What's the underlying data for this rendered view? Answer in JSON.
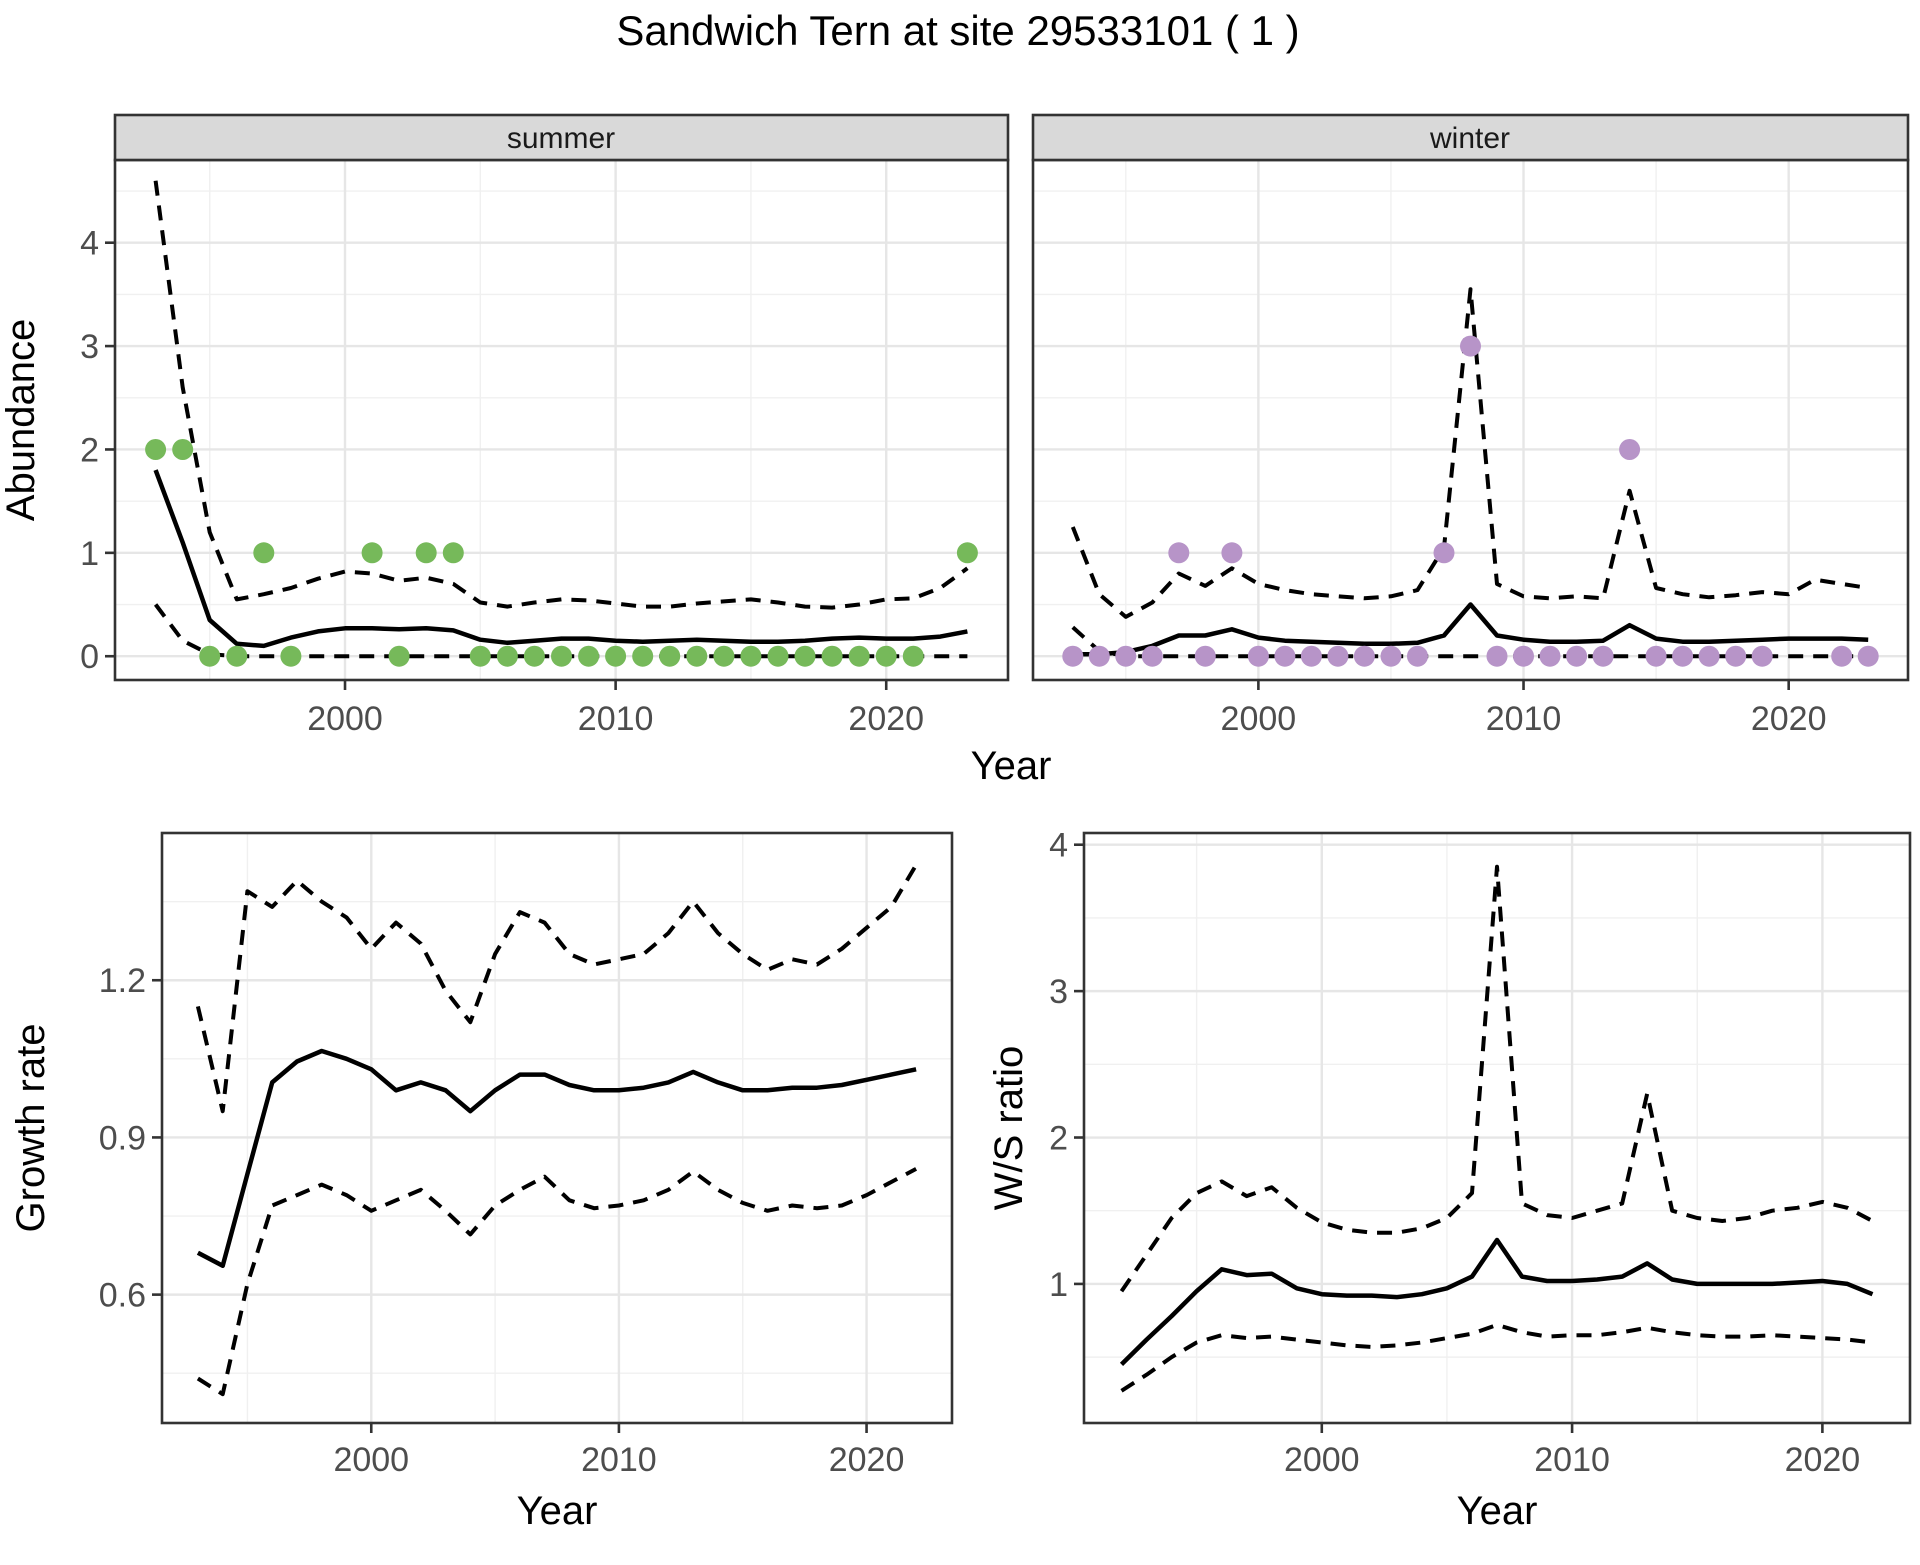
{
  "title": "Sandwich Tern at site 29533101 ( 1 )",
  "colors": {
    "summer_point": "#76B95A",
    "winter_point": "#B794C8",
    "line": "#000000",
    "grid_major": "#E6E6E6",
    "grid_minor": "#F0F0F0",
    "panel_border": "#333333",
    "panel_bg": "#FFFFFF",
    "strip_fill": "#D9D9D9",
    "tick_label": "#4D4D4D",
    "axis_title": "#000000"
  },
  "chart_data": [
    {
      "id": "abundance-summer",
      "type": "line",
      "facet": "summer",
      "xlabel": "Year",
      "ylabel": "Abundance",
      "xlim": [
        1991.5,
        2024.5
      ],
      "ylim": [
        -0.23,
        4.8
      ],
      "xticks": [
        2000,
        2010,
        2020
      ],
      "xtick_labels": [
        "2000",
        "2010",
        "2020"
      ],
      "yticks": [
        0,
        1,
        2,
        3,
        4
      ],
      "ytick_labels": [
        "0",
        "1",
        "2",
        "3",
        "4"
      ],
      "x_minor": [
        1995,
        2005,
        2015
      ],
      "y_minor": [
        0.5,
        1.5,
        2.5,
        3.5,
        4.5
      ],
      "grid": true,
      "legend": "none",
      "x": [
        1993,
        1994,
        1995,
        1996,
        1997,
        1998,
        1999,
        2000,
        2001,
        2002,
        2003,
        2004,
        2005,
        2006,
        2007,
        2008,
        2009,
        2010,
        2011,
        2012,
        2013,
        2014,
        2015,
        2016,
        2017,
        2018,
        2019,
        2020,
        2021,
        2022,
        2023
      ],
      "series": [
        {
          "name": "upper_ci",
          "style": "dashed",
          "values": [
            4.6,
            2.6,
            1.2,
            0.55,
            0.6,
            0.66,
            0.75,
            0.82,
            0.8,
            0.73,
            0.76,
            0.7,
            0.52,
            0.48,
            0.52,
            0.55,
            0.54,
            0.51,
            0.48,
            0.48,
            0.51,
            0.53,
            0.55,
            0.52,
            0.48,
            0.47,
            0.5,
            0.55,
            0.56,
            0.66,
            0.85
          ]
        },
        {
          "name": "estimate",
          "style": "solid",
          "values": [
            1.8,
            1.1,
            0.35,
            0.12,
            0.1,
            0.18,
            0.24,
            0.27,
            0.27,
            0.26,
            0.27,
            0.25,
            0.16,
            0.13,
            0.15,
            0.17,
            0.17,
            0.15,
            0.14,
            0.15,
            0.16,
            0.15,
            0.14,
            0.14,
            0.15,
            0.17,
            0.18,
            0.17,
            0.17,
            0.19,
            0.24
          ]
        },
        {
          "name": "lower_ci",
          "style": "dashed",
          "values": [
            0.5,
            0.15,
            0.02,
            0,
            0,
            0,
            0,
            0,
            0,
            0,
            0,
            0,
            0,
            0,
            0,
            0,
            0,
            0,
            0,
            0,
            0,
            0,
            0,
            0,
            0,
            0,
            0,
            0,
            0,
            0,
            0
          ]
        },
        {
          "name": "observed_counts",
          "style": "points",
          "color_key": "summer_point",
          "values": [
            2,
            2,
            0,
            0,
            1,
            0,
            null,
            null,
            1,
            0,
            1,
            1,
            0,
            0,
            0,
            0,
            0,
            0,
            0,
            0,
            0,
            0,
            0,
            0,
            0,
            0,
            0,
            0,
            0,
            null,
            1
          ]
        }
      ]
    },
    {
      "id": "abundance-winter",
      "type": "line",
      "facet": "winter",
      "xlabel": "Year",
      "ylabel": "Abundance",
      "xlim": [
        1991.5,
        2024.5
      ],
      "ylim": [
        -0.23,
        4.8
      ],
      "xticks": [
        2000,
        2010,
        2020
      ],
      "xtick_labels": [
        "2000",
        "2010",
        "2020"
      ],
      "yticks": [
        0,
        1,
        2,
        3,
        4
      ],
      "ytick_labels": [
        "0",
        "1",
        "2",
        "3",
        "4"
      ],
      "x_minor": [
        1995,
        2005,
        2015
      ],
      "y_minor": [
        0.5,
        1.5,
        2.5,
        3.5,
        4.5
      ],
      "grid": true,
      "legend": "none",
      "x": [
        1993,
        1994,
        1995,
        1996,
        1997,
        1998,
        1999,
        2000,
        2001,
        2002,
        2003,
        2004,
        2005,
        2006,
        2007,
        2008,
        2009,
        2010,
        2011,
        2012,
        2013,
        2014,
        2015,
        2016,
        2017,
        2018,
        2019,
        2020,
        2021,
        2022,
        2023
      ],
      "series": [
        {
          "name": "upper_ci",
          "style": "dashed",
          "values": [
            1.25,
            0.6,
            0.38,
            0.52,
            0.8,
            0.68,
            0.85,
            0.7,
            0.64,
            0.6,
            0.58,
            0.56,
            0.58,
            0.64,
            1.05,
            3.55,
            0.7,
            0.58,
            0.56,
            0.58,
            0.56,
            1.6,
            0.66,
            0.6,
            0.57,
            0.59,
            0.62,
            0.6,
            0.74,
            0.7,
            0.66
          ]
        },
        {
          "name": "estimate",
          "style": "solid",
          "values": [
            0.02,
            0.02,
            0.04,
            0.1,
            0.2,
            0.2,
            0.26,
            0.18,
            0.15,
            0.14,
            0.13,
            0.12,
            0.12,
            0.13,
            0.2,
            0.5,
            0.2,
            0.16,
            0.14,
            0.14,
            0.15,
            0.3,
            0.17,
            0.14,
            0.14,
            0.15,
            0.16,
            0.17,
            0.17,
            0.17,
            0.16
          ]
        },
        {
          "name": "lower_ci",
          "style": "dashed",
          "values": [
            0.28,
            0.05,
            0,
            0,
            0,
            0,
            0,
            0,
            0,
            0,
            0,
            0,
            0,
            0,
            0,
            0,
            0,
            0,
            0,
            0,
            0,
            0,
            0,
            0,
            0,
            0,
            0,
            0,
            0,
            0,
            0
          ]
        },
        {
          "name": "observed_counts",
          "style": "points",
          "color_key": "winter_point",
          "values": [
            0,
            0,
            0,
            0,
            1,
            0,
            1,
            0,
            0,
            0,
            0,
            0,
            0,
            0,
            1,
            3,
            0,
            0,
            0,
            0,
            0,
            2,
            0,
            0,
            0,
            0,
            0,
            null,
            null,
            0,
            0
          ]
        }
      ]
    },
    {
      "id": "growth-rate",
      "type": "line",
      "facet": null,
      "xlabel": "Year",
      "ylabel": "Growth rate",
      "xlim": [
        1991.55,
        2023.45
      ],
      "ylim": [
        0.355,
        1.481
      ],
      "xticks": [
        2000,
        2010,
        2020
      ],
      "xtick_labels": [
        "2000",
        "2010",
        "2020"
      ],
      "yticks": [
        0.6,
        0.9,
        1.2
      ],
      "ytick_labels": [
        "0.6",
        "0.9",
        "1.2"
      ],
      "x_minor": [
        1995,
        2005,
        2015
      ],
      "y_minor": [
        0.45,
        0.75,
        1.05,
        1.35
      ],
      "grid": true,
      "legend": "none",
      "x": [
        1993,
        1994,
        1995,
        1996,
        1997,
        1998,
        1999,
        2000,
        2001,
        2002,
        2003,
        2004,
        2005,
        2006,
        2007,
        2008,
        2009,
        2010,
        2011,
        2012,
        2013,
        2014,
        2015,
        2016,
        2017,
        2018,
        2019,
        2020,
        2021,
        2022
      ],
      "series": [
        {
          "name": "upper_ci",
          "style": "dashed",
          "values": [
            1.15,
            0.95,
            1.37,
            1.34,
            1.39,
            1.35,
            1.32,
            1.26,
            1.31,
            1.27,
            1.18,
            1.12,
            1.25,
            1.33,
            1.31,
            1.25,
            1.23,
            1.24,
            1.25,
            1.29,
            1.35,
            1.29,
            1.25,
            1.22,
            1.24,
            1.23,
            1.26,
            1.3,
            1.34,
            1.42
          ]
        },
        {
          "name": "estimate",
          "style": "solid",
          "values": [
            0.68,
            0.655,
            0.83,
            1.005,
            1.045,
            1.065,
            1.05,
            1.03,
            0.99,
            1.005,
            0.99,
            0.95,
            0.99,
            1.02,
            1.02,
            1.0,
            0.99,
            0.99,
            0.995,
            1.005,
            1.025,
            1.005,
            0.99,
            0.99,
            0.995,
            0.995,
            1.0,
            1.01,
            1.02,
            1.03
          ]
        },
        {
          "name": "lower_ci",
          "style": "dashed",
          "values": [
            0.44,
            0.41,
            0.62,
            0.77,
            0.79,
            0.81,
            0.79,
            0.76,
            0.78,
            0.8,
            0.76,
            0.715,
            0.77,
            0.8,
            0.825,
            0.78,
            0.765,
            0.77,
            0.78,
            0.8,
            0.835,
            0.8,
            0.775,
            0.76,
            0.77,
            0.765,
            0.77,
            0.79,
            0.815,
            0.84
          ]
        }
      ]
    },
    {
      "id": "ws-ratio",
      "type": "line",
      "facet": null,
      "xlabel": "Year",
      "ylabel": "W/S ratio",
      "xlim": [
        1990.5,
        2023.5
      ],
      "ylim": [
        0.05,
        4.08
      ],
      "xticks": [
        2000,
        2010,
        2020
      ],
      "xtick_labels": [
        "2000",
        "2010",
        "2020"
      ],
      "yticks": [
        1,
        2,
        3,
        4
      ],
      "ytick_labels": [
        "1",
        "2",
        "3",
        "4"
      ],
      "x_minor": [
        1995,
        2005,
        2015
      ],
      "y_minor": [
        0.5,
        1.5,
        2.5,
        3.5
      ],
      "grid": true,
      "legend": "none",
      "x": [
        1992,
        1993,
        1994,
        1995,
        1996,
        1997,
        1998,
        1999,
        2000,
        2001,
        2002,
        2003,
        2004,
        2005,
        2006,
        2007,
        2008,
        2009,
        2010,
        2011,
        2012,
        2013,
        2014,
        2015,
        2016,
        2017,
        2018,
        2019,
        2020,
        2021,
        2022
      ],
      "series": [
        {
          "name": "upper_ci",
          "style": "dashed",
          "values": [
            0.95,
            1.2,
            1.45,
            1.62,
            1.7,
            1.6,
            1.66,
            1.52,
            1.42,
            1.37,
            1.35,
            1.35,
            1.38,
            1.45,
            1.62,
            3.85,
            1.55,
            1.47,
            1.45,
            1.5,
            1.55,
            2.3,
            1.5,
            1.45,
            1.43,
            1.45,
            1.5,
            1.52,
            1.56,
            1.52,
            1.43
          ]
        },
        {
          "name": "estimate",
          "style": "solid",
          "values": [
            0.45,
            0.62,
            0.78,
            0.95,
            1.1,
            1.06,
            1.07,
            0.97,
            0.93,
            0.92,
            0.92,
            0.91,
            0.93,
            0.97,
            1.05,
            1.3,
            1.05,
            1.02,
            1.02,
            1.03,
            1.05,
            1.14,
            1.03,
            1.0,
            1.0,
            1.0,
            1.0,
            1.01,
            1.02,
            1.0,
            0.93
          ]
        },
        {
          "name": "lower_ci",
          "style": "dashed",
          "values": [
            0.27,
            0.38,
            0.5,
            0.6,
            0.65,
            0.63,
            0.64,
            0.62,
            0.6,
            0.58,
            0.57,
            0.58,
            0.6,
            0.63,
            0.66,
            0.72,
            0.67,
            0.64,
            0.65,
            0.65,
            0.67,
            0.7,
            0.67,
            0.65,
            0.64,
            0.64,
            0.65,
            0.64,
            0.63,
            0.62,
            0.6
          ]
        }
      ]
    }
  ]
}
